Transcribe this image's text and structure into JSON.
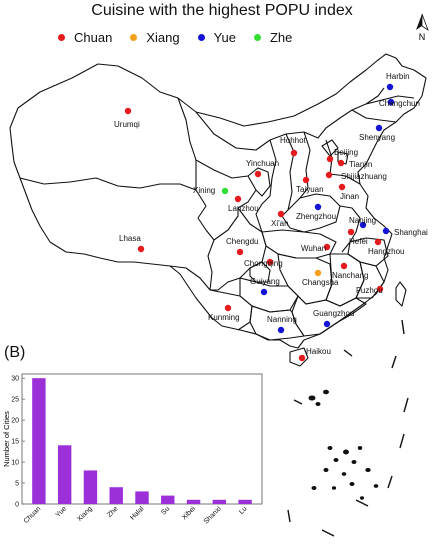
{
  "title": "Cuisine with the highest POPU index",
  "panel_label": "(B)",
  "north_label": "N",
  "legend": [
    {
      "name": "Chuan",
      "color": "#e41a1c"
    },
    {
      "name": "Xiang",
      "color": "#f59f1c"
    },
    {
      "name": "Yue",
      "color": "#1414d6"
    },
    {
      "name": "Zhe",
      "color": "#33dd33"
    }
  ],
  "cities": [
    {
      "name": "Urumqi",
      "cuisine": "Chuan"
    },
    {
      "name": "Harbin",
      "cuisine": "Yue"
    },
    {
      "name": "Changchun",
      "cuisine": "Yue"
    },
    {
      "name": "Shenyang",
      "cuisine": "Yue"
    },
    {
      "name": "Hohhot",
      "cuisine": "Chuan"
    },
    {
      "name": "Beijing",
      "cuisine": "Chuan"
    },
    {
      "name": "Tianjin",
      "cuisine": "Chuan"
    },
    {
      "name": "Yinchuan",
      "cuisine": "Chuan"
    },
    {
      "name": "Shijiazhuang",
      "cuisine": "Chuan"
    },
    {
      "name": "Taiyuan",
      "cuisine": "Chuan"
    },
    {
      "name": "Jinan",
      "cuisine": "Chuan"
    },
    {
      "name": "Xining",
      "cuisine": "Zhe"
    },
    {
      "name": "Lanzhou",
      "cuisine": "Chuan"
    },
    {
      "name": "Zhengzhou",
      "cuisine": "Yue"
    },
    {
      "name": "Xi'an",
      "cuisine": "Chuan"
    },
    {
      "name": "Nanjing",
      "cuisine": "Yue"
    },
    {
      "name": "Shanghai",
      "cuisine": "Yue"
    },
    {
      "name": "Hefei",
      "cuisine": "Chuan"
    },
    {
      "name": "Hangzhou",
      "cuisine": "Chuan"
    },
    {
      "name": "Lhasa",
      "cuisine": "Chuan"
    },
    {
      "name": "Chengdu",
      "cuisine": "Chuan"
    },
    {
      "name": "Wuhan",
      "cuisine": "Chuan"
    },
    {
      "name": "Chongqing",
      "cuisine": "Chuan"
    },
    {
      "name": "Changsha",
      "cuisine": "Xiang"
    },
    {
      "name": "Nanchang",
      "cuisine": "Chuan"
    },
    {
      "name": "Guiyang",
      "cuisine": "Yue"
    },
    {
      "name": "Fuzhou",
      "cuisine": "Chuan"
    },
    {
      "name": "Kunming",
      "cuisine": "Chuan"
    },
    {
      "name": "Nanning",
      "cuisine": "Yue"
    },
    {
      "name": "Guangzhou",
      "cuisine": "Yue"
    },
    {
      "name": "Haikou",
      "cuisine": "Chuan"
    }
  ],
  "chart_data": {
    "type": "bar",
    "categories": [
      "Chuan",
      "Yue",
      "Xiang",
      "Zhe",
      "Halal",
      "Su",
      "Xibei",
      "Shanxi",
      "Lu"
    ],
    "values": [
      30,
      14,
      8,
      4,
      3,
      2,
      1,
      1,
      1
    ],
    "ylabel": "Number of Cities",
    "xlabel": "",
    "ylim": [
      0,
      31
    ],
    "yticks": [
      0,
      5,
      10,
      15,
      20,
      25,
      30
    ],
    "bar_color": "#9b30d9",
    "grid": false
  }
}
